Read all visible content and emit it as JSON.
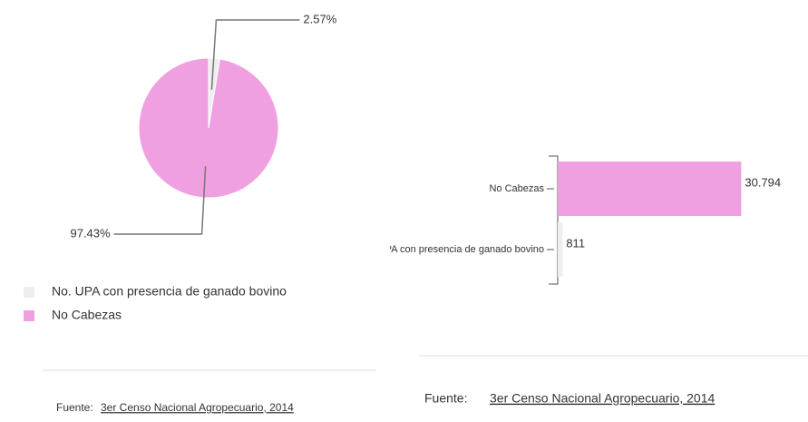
{
  "chart_data": [
    {
      "type": "pie",
      "series": [
        {
          "name": "No. UPA con presencia de ganado bovino",
          "color": "#eeeeee",
          "values": [
            2.57
          ],
          "value_labels": [
            "2.57%"
          ]
        },
        {
          "name": "No Cabezas",
          "color": "#f0a0e0",
          "values": [
            97.43
          ],
          "value_labels": [
            "97.43%"
          ]
        }
      ]
    },
    {
      "type": "hbar",
      "categories": [
        "No Cabezas",
        "No. UPA con presencia de ganado bovino"
      ],
      "values": [
        30794,
        811
      ],
      "value_labels": [
        "30.794",
        "811"
      ],
      "colors": [
        "#f0a0e0",
        "#eeeeee"
      ],
      "xlim": [
        0,
        35000
      ]
    }
  ],
  "sources": [
    {
      "prefix": "Fuente:",
      "link": "3er Censo Nacional Agropecuario, 2014"
    },
    {
      "prefix": "Fuente:",
      "link": "3er Censo Nacional Agropecuario, 2014"
    }
  ]
}
